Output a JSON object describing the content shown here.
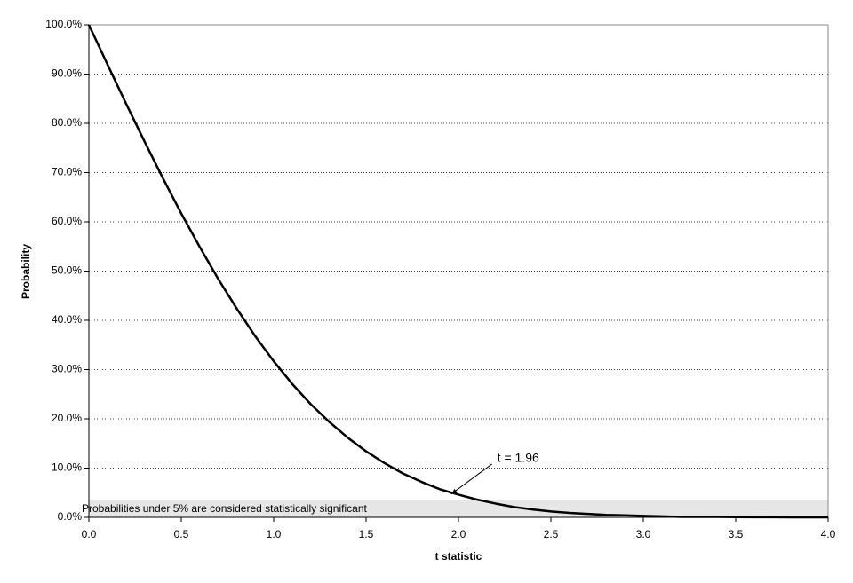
{
  "chart_data": {
    "type": "line",
    "xlabel": "t statistic",
    "ylabel": "Probability",
    "x": [
      0,
      0.1,
      0.2,
      0.3,
      0.4,
      0.5,
      0.6,
      0.7,
      0.8,
      0.9,
      1.0,
      1.1,
      1.2,
      1.3,
      1.4,
      1.5,
      1.6,
      1.7,
      1.8,
      1.9,
      2.0,
      2.1,
      2.2,
      2.3,
      2.4,
      2.5,
      2.6,
      2.7,
      2.8,
      2.9,
      3.0,
      3.1,
      3.2,
      3.3,
      3.4,
      3.5,
      3.6,
      3.7,
      3.8,
      3.9,
      4.0
    ],
    "series": [
      {
        "color": "#000000",
        "values": [
          100,
          92.0,
          84.1,
          76.4,
          68.9,
          61.7,
          54.9,
          48.4,
          42.4,
          36.8,
          31.7,
          27.1,
          23.0,
          19.4,
          16.2,
          13.4,
          11.0,
          8.9,
          7.2,
          5.7,
          4.6,
          3.6,
          2.8,
          2.1,
          1.6,
          1.2,
          0.9,
          0.7,
          0.5,
          0.4,
          0.3,
          0.2,
          0.1,
          0.1,
          0.1,
          0.05,
          0.03,
          0.02,
          0.01,
          0.01,
          0.01
        ]
      }
    ],
    "xlim": [
      0,
      4
    ],
    "ylim": [
      0,
      100
    ],
    "xticks": [
      {
        "value": 0,
        "label": "0.0"
      },
      0.5,
      {
        "value": 1,
        "label": "1.0"
      },
      1.5,
      {
        "value": 2,
        "label": "2.0"
      },
      2.5,
      {
        "value": 3,
        "label": "3.0"
      },
      3.5,
      {
        "value": 4,
        "label": "4.0"
      }
    ],
    "yticks": [
      {
        "value": 0,
        "label": "0.0%"
      },
      {
        "value": 10,
        "label": "10.0%"
      },
      {
        "value": 20,
        "label": "20.0%"
      },
      {
        "value": 30,
        "label": "30.0%"
      },
      {
        "value": 40,
        "label": "40.0%"
      },
      {
        "value": 50,
        "label": "50.0%"
      },
      {
        "value": 60,
        "label": "60.0%"
      },
      {
        "value": 70,
        "label": "70.0%"
      },
      {
        "value": 80,
        "label": "80.0%"
      },
      {
        "value": 90,
        "label": "90.0%"
      },
      {
        "value": 100,
        "label": "100.0%"
      }
    ],
    "grid": true,
    "shaded_band": {
      "ylim": [
        0,
        3.6
      ],
      "color": "#e6e6e6",
      "label": "Probabilities under 5% are considered statistically significant"
    },
    "annotation": {
      "text": "t = 1.96",
      "x": 1.96,
      "y": 4.7
    }
  }
}
